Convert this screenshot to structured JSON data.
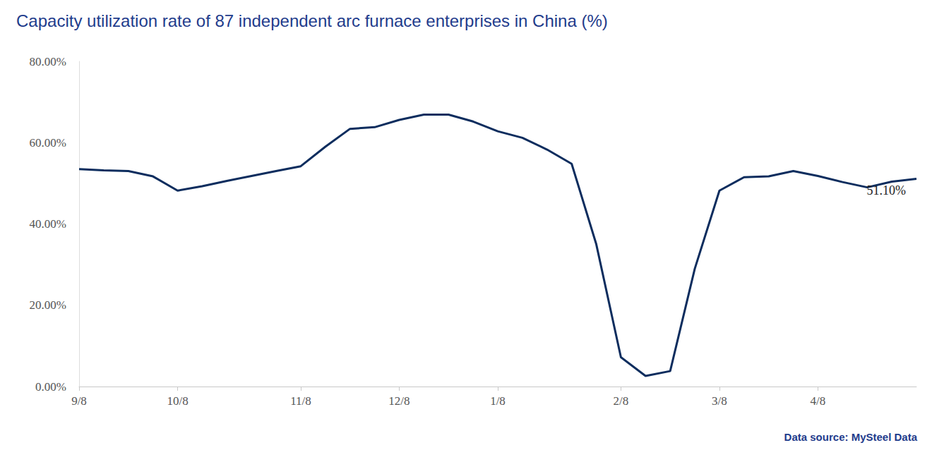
{
  "chart_data": {
    "type": "line",
    "title": "Capacity utilization rate of 87 independent arc furnace enterprises in China (%)",
    "source": "Data source: MySteel Data",
    "categories": [
      "9/8",
      null,
      null,
      null,
      "10/8",
      null,
      null,
      null,
      null,
      "11/8",
      null,
      null,
      null,
      "12/8",
      null,
      null,
      null,
      "1/8",
      null,
      null,
      null,
      null,
      "2/8",
      null,
      null,
      null,
      "3/8",
      null,
      null,
      null,
      "4/8",
      null,
      null,
      null,
      null
    ],
    "values": [
      53.5,
      53.2,
      53.0,
      51.7,
      48.2,
      49.3,
      50.6,
      51.8,
      53.0,
      54.2,
      59.0,
      63.4,
      63.8,
      65.6,
      66.9,
      66.9,
      65.2,
      62.8,
      61.2,
      58.3,
      54.8,
      35.0,
      7.2,
      2.6,
      3.8,
      29.0,
      48.2,
      51.5,
      51.7,
      53.0,
      51.8,
      50.3,
      49.0,
      50.4,
      51.1
    ],
    "value_labels": [
      null,
      null,
      null,
      null,
      null,
      null,
      null,
      null,
      null,
      null,
      null,
      null,
      null,
      null,
      null,
      null,
      null,
      null,
      null,
      null,
      null,
      null,
      null,
      null,
      null,
      null,
      null,
      null,
      null,
      null,
      null,
      null,
      null,
      null,
      "51.10%"
    ],
    "data_labels": true,
    "color": "#0d2d5e",
    "ylim": [
      0,
      80
    ],
    "yticks": [
      {
        "value": 0,
        "label": "0.00%"
      },
      {
        "value": 20,
        "label": "20.00%"
      },
      {
        "value": 40,
        "label": "40.00%"
      },
      {
        "value": 60,
        "label": "60.00%"
      },
      {
        "value": 80,
        "label": "80.00%"
      }
    ],
    "grid": false
  }
}
